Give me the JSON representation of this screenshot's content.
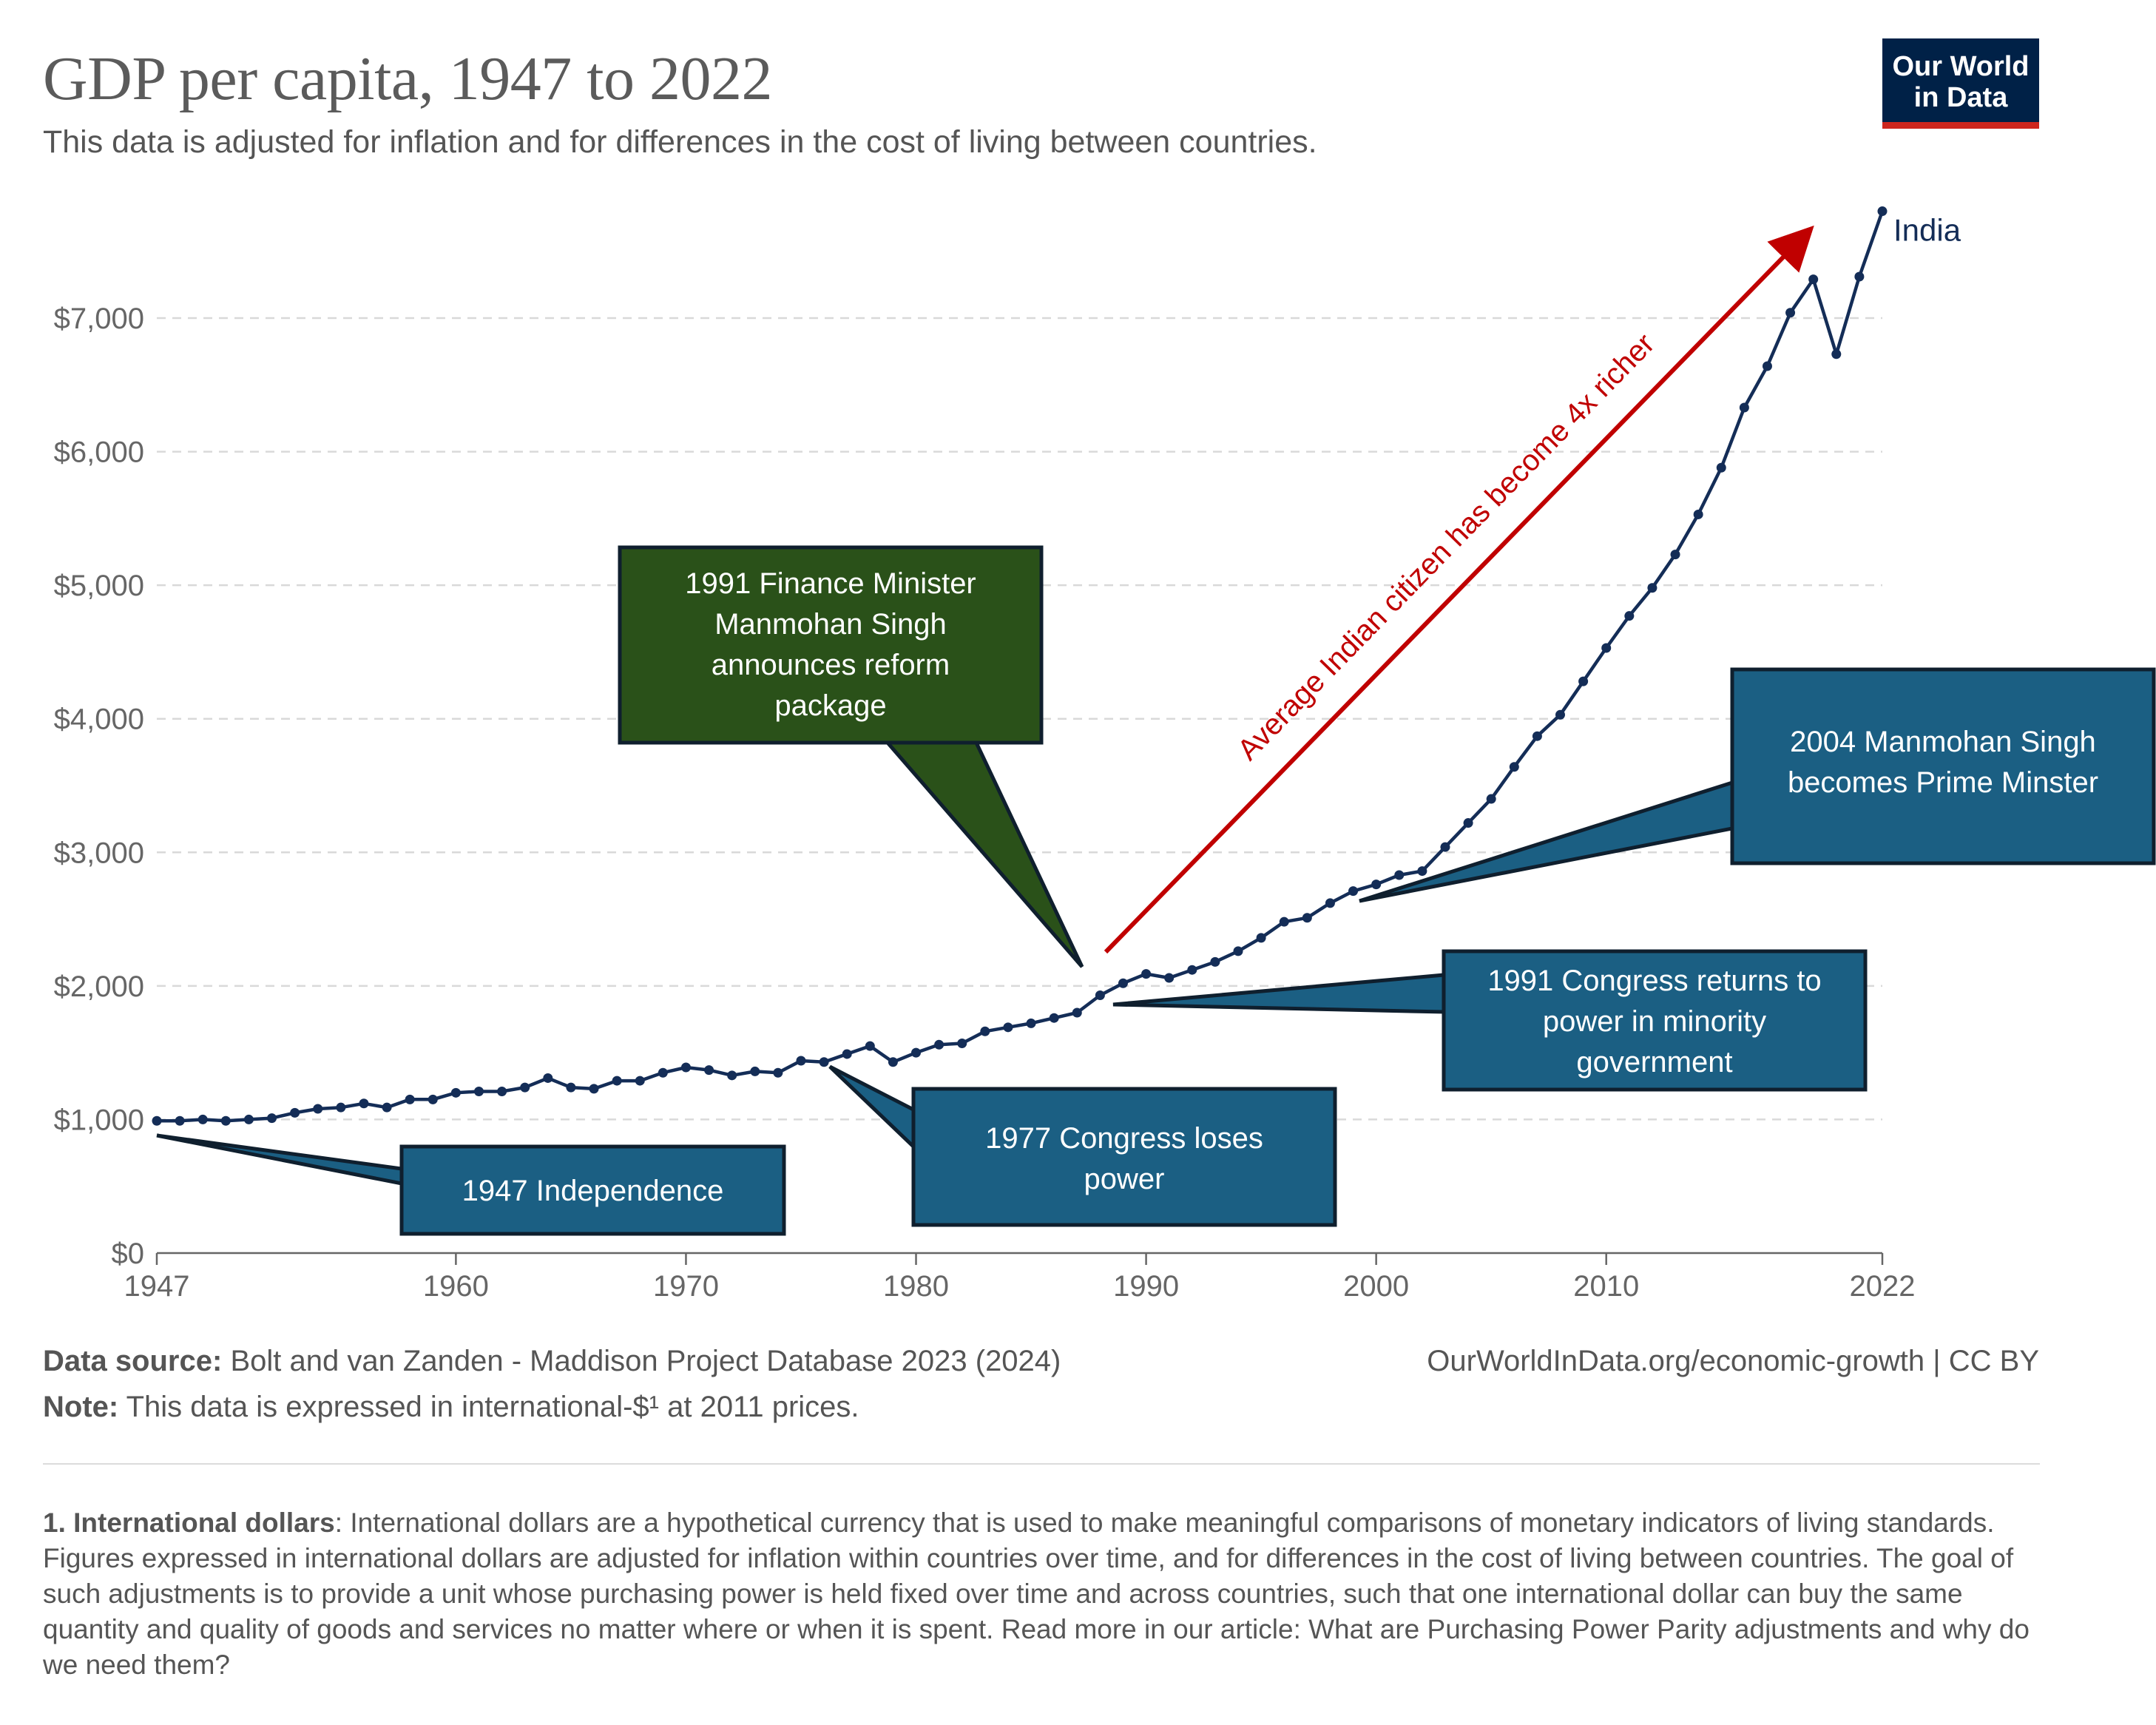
{
  "header": {
    "title": "GDP per capita, 1947 to 2022",
    "subtitle": "This data is adjusted for inflation and for differences in the cost of living between countries.",
    "logo_line1": "Our World",
    "logo_line2": "in Data"
  },
  "colors": {
    "series": "#142d57",
    "callout_blue": "#1b5f83",
    "callout_green": "#2a5119",
    "arrow": "#c00000",
    "grid": "#d9d9d9"
  },
  "annotations": {
    "callouts": [
      {
        "id": "independence",
        "lines": [
          "1947 Independence"
        ],
        "color": "#1b5f83"
      },
      {
        "id": "congress-loses",
        "lines": [
          "1977 Congress loses",
          "power"
        ],
        "color": "#1b5f83"
      },
      {
        "id": "finance-minister",
        "lines": [
          "1991 Finance Minister",
          "Manmohan Singh",
          "announces reform",
          "package"
        ],
        "color": "#2a5119"
      },
      {
        "id": "congress-returns",
        "lines": [
          "1991 Congress returns to",
          "power in minority",
          "government"
        ],
        "color": "#1b5f83"
      },
      {
        "id": "prime-minister",
        "lines": [
          "2004 Manmohan Singh",
          "becomes Prime Minster"
        ],
        "color": "#1b5f83"
      }
    ],
    "arrow_label": "Average Indian citizen has become 4x richer"
  },
  "chart_data": {
    "type": "line",
    "title": "GDP per capita, 1947 to 2022",
    "xlabel": "",
    "ylabel": "",
    "xlim": [
      1947,
      2022
    ],
    "ylim": [
      0,
      7800
    ],
    "x_ticks": [
      1947,
      1960,
      1970,
      1980,
      1990,
      2000,
      2010,
      2022
    ],
    "y_ticks": [
      0,
      1000,
      2000,
      3000,
      4000,
      5000,
      6000,
      7000
    ],
    "y_tick_labels": [
      "$0",
      "$1,000",
      "$2,000",
      "$3,000",
      "$4,000",
      "$5,000",
      "$6,000",
      "$7,000"
    ],
    "grid": true,
    "series": [
      {
        "name": "India",
        "x": [
          1947,
          1948,
          1949,
          1950,
          1951,
          1952,
          1953,
          1954,
          1955,
          1956,
          1957,
          1958,
          1959,
          1960,
          1961,
          1962,
          1963,
          1964,
          1965,
          1966,
          1967,
          1968,
          1969,
          1970,
          1971,
          1972,
          1973,
          1974,
          1975,
          1976,
          1977,
          1978,
          1979,
          1980,
          1981,
          1982,
          1983,
          1984,
          1985,
          1986,
          1987,
          1988,
          1989,
          1990,
          1991,
          1992,
          1993,
          1994,
          1995,
          1996,
          1997,
          1998,
          1999,
          2000,
          2001,
          2002,
          2003,
          2004,
          2005,
          2006,
          2007,
          2008,
          2009,
          2010,
          2011,
          2012,
          2013,
          2014,
          2015,
          2016,
          2017,
          2018,
          2019,
          2020,
          2021,
          2022
        ],
        "values": [
          990,
          990,
          1000,
          990,
          1000,
          1010,
          1050,
          1080,
          1090,
          1120,
          1090,
          1150,
          1150,
          1200,
          1210,
          1210,
          1240,
          1310,
          1240,
          1230,
          1290,
          1290,
          1350,
          1390,
          1370,
          1330,
          1360,
          1350,
          1440,
          1430,
          1490,
          1550,
          1430,
          1500,
          1560,
          1570,
          1660,
          1690,
          1720,
          1760,
          1800,
          1930,
          2020,
          2090,
          2060,
          2120,
          2180,
          2260,
          2360,
          2480,
          2510,
          2620,
          2710,
          2760,
          2830,
          2860,
          3040,
          3220,
          3400,
          3640,
          3870,
          4030,
          4280,
          4530,
          4770,
          4980,
          5230,
          5530,
          5880,
          6330,
          6640,
          7040,
          7290,
          6730,
          7310,
          7800
        ]
      }
    ]
  },
  "footer": {
    "source_label": "Data source:",
    "source_text": "Bolt and van Zanden - Maddison Project Database 2023 (2024)",
    "note_label": "Note:",
    "note_text": "This data is expressed in international-$¹ at 2011 prices.",
    "url": "OurWorldInData.org/economic-growth | CC BY",
    "footnote_label": "1. International dollars",
    "footnote_text": ": International dollars are a hypothetical currency that is used to make meaningful comparisons of monetary indicators of living standards. Figures expressed in international dollars are adjusted for inflation within countries over time, and for differences in the cost of living between countries. The goal of such adjustments is to provide a unit whose purchasing power is held fixed over time and across countries, such that one international dollar can buy the same quantity and quality of goods and services no matter where or when it is spent. Read more in our article: What are Purchasing Power Parity adjustments and why do we need them?"
  }
}
